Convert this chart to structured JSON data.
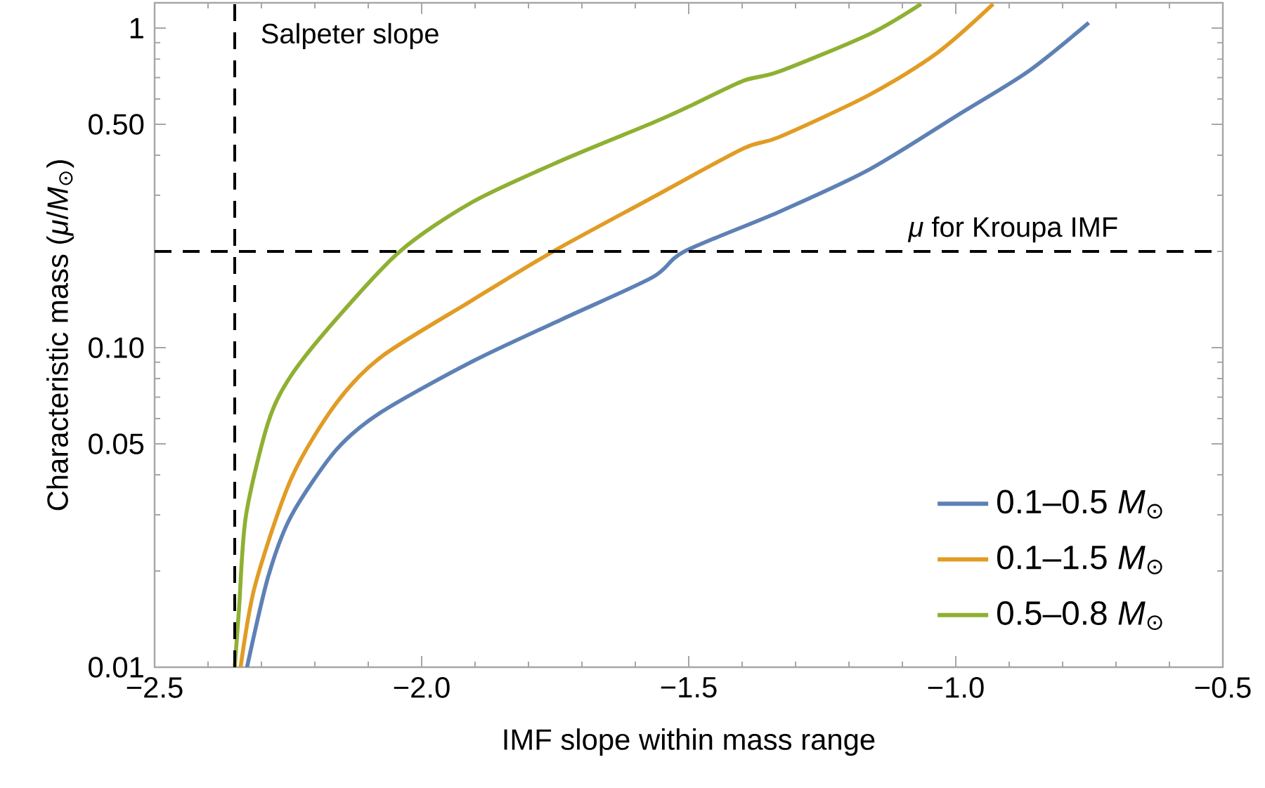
{
  "chart_data": {
    "type": "line",
    "xlabel": "IMF slope within mass range",
    "ylabel": "Characteristic mass (*μ*/*M*$_{⊙}$)",
    "xlim": [
      -2.5,
      -0.5
    ],
    "xticks": [
      {
        "value": -2.5,
        "label": "−2.5"
      },
      {
        "value": -2.0,
        "label": "−2.0"
      },
      {
        "value": -1.5,
        "label": "−1.5"
      },
      {
        "value": -1.0,
        "label": "−1.0"
      },
      {
        "value": -0.5,
        "label": "−0.5"
      }
    ],
    "ylim": [
      0.01,
      1.2
    ],
    "yticks": [
      0.01,
      0.05,
      {
        "value": 0.1,
        "label": "0.10"
      },
      {
        "value": 0.5,
        "label": "0.50"
      },
      1
    ],
    "log": "y",
    "grid": false,
    "legend": "bottom right",
    "marker": "none",
    "line_style": "solid",
    "series": [
      {
        "name": "0.1–0.5 *M*$_{⊙}$",
        "color": "#5e81b5",
        "x": [
          -2.327,
          -2.287,
          -2.244,
          -2.16,
          -2.076,
          -1.906,
          -1.737,
          -1.568,
          -1.508,
          -1.331,
          -1.162,
          -0.992,
          -0.865,
          -0.751
        ],
        "values": [
          0.01,
          0.0193,
          0.0298,
          0.0479,
          0.0628,
          0.0904,
          0.1228,
          0.166,
          0.2,
          0.266,
          0.361,
          0.54,
          0.731,
          1.04
        ]
      },
      {
        "name": "0.1–1.5 *M*$_{⊙}$",
        "color": "#e19c24",
        "x": [
          -2.339,
          -2.312,
          -2.244,
          -2.16,
          -2.075,
          -1.906,
          -1.754,
          -1.568,
          -1.398,
          -1.331,
          -1.162,
          -1.035,
          -0.93
        ],
        "values": [
          0.01,
          0.018,
          0.039,
          0.067,
          0.0938,
          0.1405,
          0.2,
          0.295,
          0.42,
          0.456,
          0.618,
          0.836,
          1.19
        ]
      },
      {
        "name": "0.5–0.8 *M*$_{⊙}$",
        "color": "#8fb032",
        "x": [
          -2.35,
          -2.342,
          -2.329,
          -2.287,
          -2.244,
          -2.16,
          -2.041,
          -1.906,
          -1.737,
          -1.568,
          -1.5,
          -1.398,
          -1.331,
          -1.162,
          -1.065
        ],
        "values": [
          0.01,
          0.0152,
          0.0298,
          0.0586,
          0.082,
          0.1228,
          0.2,
          0.285,
          0.386,
          0.505,
          0.568,
          0.684,
          0.731,
          0.957,
          1.19
        ]
      }
    ],
    "ref_lines": [
      {
        "axis": "x",
        "value": -2.35,
        "label": "Salpeter slope",
        "color": "#000000",
        "line_style": "dashed"
      },
      {
        "axis": "y",
        "value": 0.2,
        "label": "*μ* for Kroupa IMF",
        "color": "#000000",
        "line_style": "dashed"
      }
    ]
  }
}
